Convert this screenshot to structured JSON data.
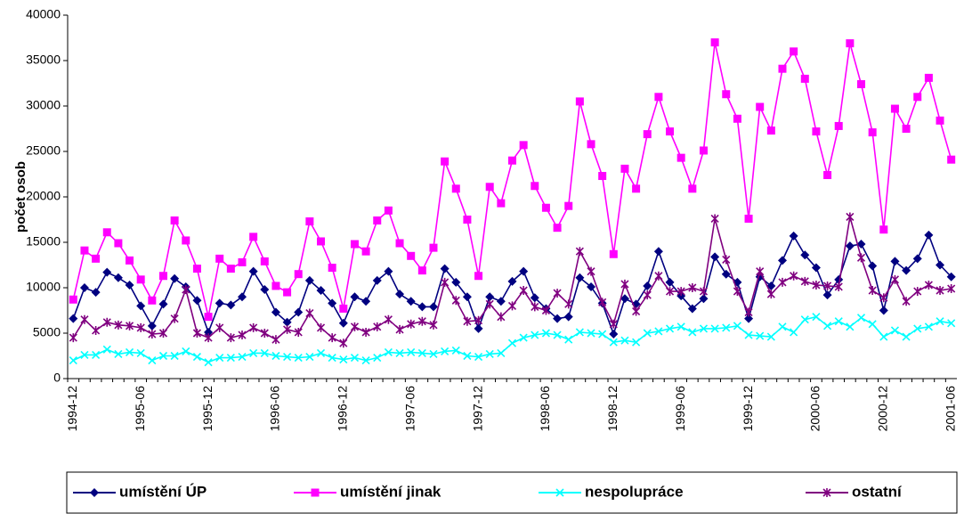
{
  "chart_data": {
    "type": "line",
    "y_label": "počet osob",
    "categories": [
      "1994-12",
      null,
      null,
      null,
      null,
      null,
      "1995-06",
      null,
      null,
      null,
      null,
      null,
      "1995-12",
      null,
      null,
      null,
      null,
      null,
      "1996-06",
      null,
      null,
      null,
      null,
      null,
      "1996-12",
      null,
      null,
      null,
      null,
      null,
      "1997-06",
      null,
      null,
      null,
      null,
      null,
      "1997-12",
      null,
      null,
      null,
      null,
      null,
      "1998-06",
      null,
      null,
      null,
      null,
      null,
      "1998-12",
      null,
      null,
      null,
      null,
      null,
      "1999-06",
      null,
      null,
      null,
      null,
      null,
      "1999-12",
      null,
      null,
      null,
      null,
      null,
      "2000-06",
      null,
      null,
      null,
      null,
      null,
      "2000-12",
      null,
      null,
      null,
      null,
      null,
      "2001-06"
    ],
    "ylim": [
      0,
      40000
    ],
    "yticks": [
      0,
      5000,
      10000,
      15000,
      20000,
      25000,
      30000,
      35000,
      40000
    ],
    "legend": "bottom",
    "series": [
      {
        "name": "umístění ÚP",
        "color": "#000080",
        "marker": "diamond",
        "values": [
          6600,
          10000,
          9500,
          11700,
          11100,
          10300,
          8000,
          5800,
          8200,
          11000,
          10100,
          8600,
          5100,
          8300,
          8100,
          9000,
          11800,
          9800,
          7300,
          6200,
          7300,
          10800,
          9700,
          8300,
          6100,
          9000,
          8500,
          10800,
          11800,
          9300,
          8500,
          7900,
          7900,
          12100,
          10600,
          9000,
          5500,
          9000,
          8500,
          10700,
          11800,
          8900,
          7700,
          6600,
          6800,
          11100,
          10100,
          8300,
          4900,
          8800,
          8200,
          10200,
          14000,
          10600,
          9100,
          7700,
          8800,
          13400,
          11500,
          10600,
          6600,
          11200,
          10200,
          13000,
          15700,
          13600,
          12200,
          9200,
          10900,
          14600,
          14800,
          12400,
          7500,
          12900,
          11900,
          13200,
          15800,
          12500,
          11200
        ]
      },
      {
        "name": "umístění jinak",
        "color": "#ff00ff",
        "marker": "square",
        "values": [
          8700,
          14100,
          13200,
          16100,
          14900,
          13000,
          10900,
          8600,
          11300,
          17400,
          15200,
          12100,
          6800,
          13200,
          12100,
          12800,
          15600,
          12900,
          10200,
          9500,
          11500,
          17300,
          15100,
          12200,
          7700,
          14800,
          14000,
          17400,
          18500,
          14900,
          13500,
          11900,
          14400,
          23900,
          20900,
          17500,
          11300,
          21100,
          19300,
          24000,
          25700,
          21200,
          18800,
          16600,
          19000,
          30500,
          25800,
          22300,
          13700,
          23100,
          20900,
          26900,
          31000,
          27200,
          24300,
          20900,
          25100,
          37000,
          31300,
          28600,
          17600,
          29900,
          27300,
          34100,
          36000,
          33000,
          27200,
          22400,
          27800,
          36900,
          32400,
          27100,
          16400,
          29700,
          27500,
          31000,
          33100,
          28400,
          24100
        ]
      },
      {
        "name": "nespolupráce",
        "color": "#00ffff",
        "marker": "x",
        "values": [
          2000,
          2600,
          2600,
          3200,
          2700,
          2900,
          2800,
          2000,
          2500,
          2500,
          3000,
          2400,
          1800,
          2300,
          2300,
          2400,
          2800,
          2800,
          2500,
          2400,
          2300,
          2400,
          2800,
          2300,
          2100,
          2300,
          2000,
          2300,
          2900,
          2800,
          2900,
          2800,
          2700,
          3000,
          3100,
          2500,
          2400,
          2700,
          2800,
          3900,
          4500,
          4800,
          5000,
          4800,
          4300,
          5100,
          5000,
          4900,
          4000,
          4200,
          4000,
          5000,
          5200,
          5500,
          5700,
          5100,
          5500,
          5500,
          5600,
          5800,
          4800,
          4700,
          4600,
          5700,
          5100,
          6500,
          6800,
          5800,
          6300,
          5700,
          6700,
          6000,
          4600,
          5300,
          4600,
          5500,
          5700,
          6300,
          6100
        ]
      },
      {
        "name": "ostatní",
        "color": "#800080",
        "marker": "star",
        "values": [
          4500,
          6500,
          5300,
          6200,
          5900,
          5800,
          5600,
          4900,
          5000,
          6600,
          9800,
          5000,
          4500,
          5600,
          4500,
          4800,
          5600,
          5000,
          4300,
          5400,
          5100,
          7200,
          5600,
          4500,
          3900,
          5700,
          5100,
          5700,
          6500,
          5400,
          6000,
          6300,
          5900,
          10600,
          8600,
          6300,
          6400,
          8200,
          6800,
          8000,
          9700,
          7900,
          7500,
          9400,
          8200,
          14000,
          11800,
          8400,
          6000,
          10400,
          7400,
          9200,
          11300,
          9600,
          9600,
          10000,
          9600,
          17600,
          13100,
          9600,
          7300,
          11800,
          9300,
          10600,
          11300,
          10700,
          10300,
          10200,
          10100,
          17800,
          13300,
          9700,
          8900,
          10900,
          8500,
          9600,
          10300,
          9700,
          9900
        ]
      }
    ]
  }
}
